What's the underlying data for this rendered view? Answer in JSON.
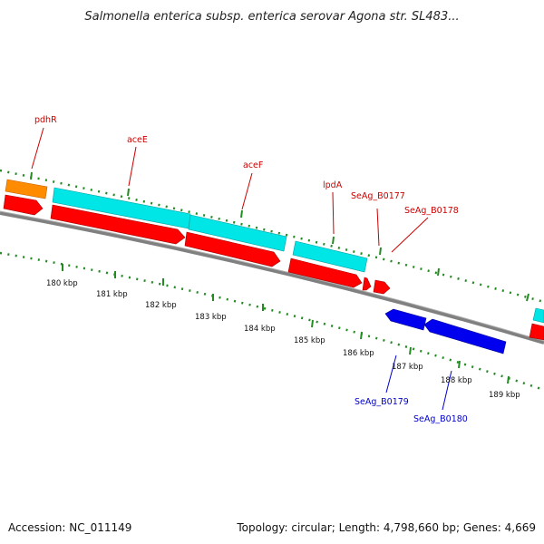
{
  "title": "Salmonella enterica subsp. enterica serovar Agona str. SL483...",
  "footer": {
    "accession": "Accession: NC_011149",
    "summary": "Topology: circular; Length: 4,798,660 bp; Genes: 4,669"
  },
  "colors": {
    "cds_forward": "#ff0000",
    "cds_reverse": "#0000ee",
    "gene_forward": "#00e5e5",
    "gene_other": "#ff8c00",
    "backbone": "#808080",
    "ticks": "#228b22",
    "label_forward": "#cc0000",
    "label_reverse": "#0000cc"
  },
  "gene_labels_forward": [
    "pdhR",
    "aceE",
    "aceF",
    "lpdA",
    "SeAg_B0177",
    "SeAg_B0178"
  ],
  "gene_labels_reverse": [
    "SeAg_B0179",
    "SeAg_B0180"
  ],
  "kbp_labels": [
    "180 kbp",
    "181 kbp",
    "182 kbp",
    "183 kbp",
    "184 kbp",
    "185 kbp",
    "186 kbp",
    "187 kbp",
    "188 kbp",
    "189 kbp"
  ]
}
